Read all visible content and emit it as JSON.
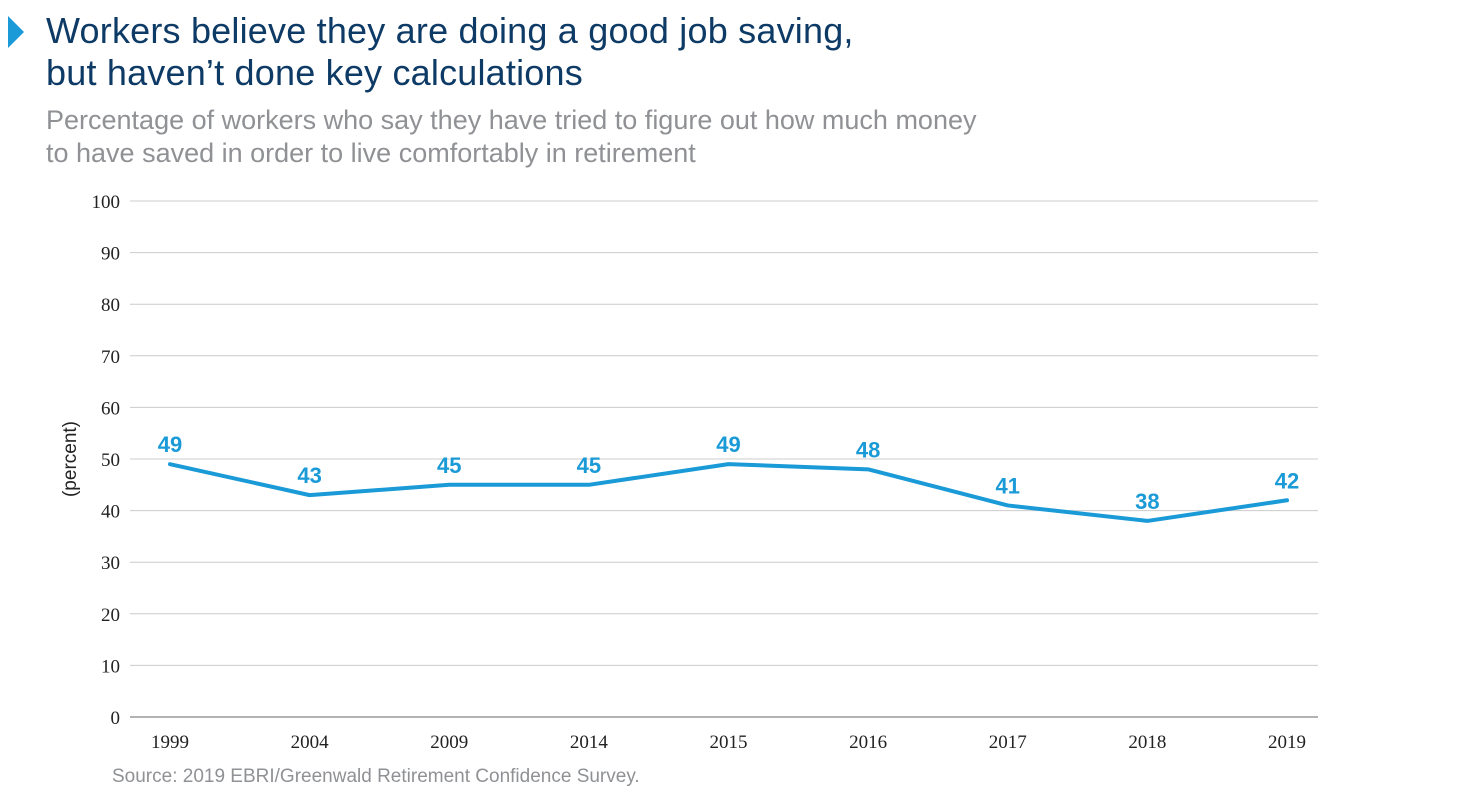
{
  "header": {
    "title_lines": [
      "Workers believe they are doing a good job saving,",
      "but haven’t done key calculations"
    ],
    "subtitle_lines": [
      "Percentage of workers who say they have tried to figure out how much money",
      "to have saved in order to live comfortably in retirement"
    ]
  },
  "footer": {
    "source": "Source: 2019 EBRI/Greenwald Retirement Confidence Survey."
  },
  "colors": {
    "accent": "#1a9ad6",
    "title": "#0e3a66",
    "muted": "#8f9194",
    "grid": "#cccccc"
  },
  "chart_data": {
    "type": "line",
    "title": "Workers believe they are doing a good job saving, but haven’t done key calculations",
    "subtitle": "Percentage of workers who say they have tried to figure out how much money to have saved in order to live comfortably in retirement",
    "categories": [
      "1999",
      "2004",
      "2009",
      "2014",
      "2015",
      "2016",
      "2017",
      "2018",
      "2019"
    ],
    "series": [
      {
        "values": [
          49,
          43,
          45,
          45,
          49,
          48,
          41,
          38,
          42
        ]
      }
    ],
    "xlabel": "",
    "ylabel": "(percent)",
    "ylim": [
      0,
      100
    ],
    "yticks": [
      0,
      10,
      20,
      30,
      40,
      50,
      60,
      70,
      80,
      90,
      100
    ],
    "grid": true,
    "legend": "none",
    "data_labels": true
  }
}
